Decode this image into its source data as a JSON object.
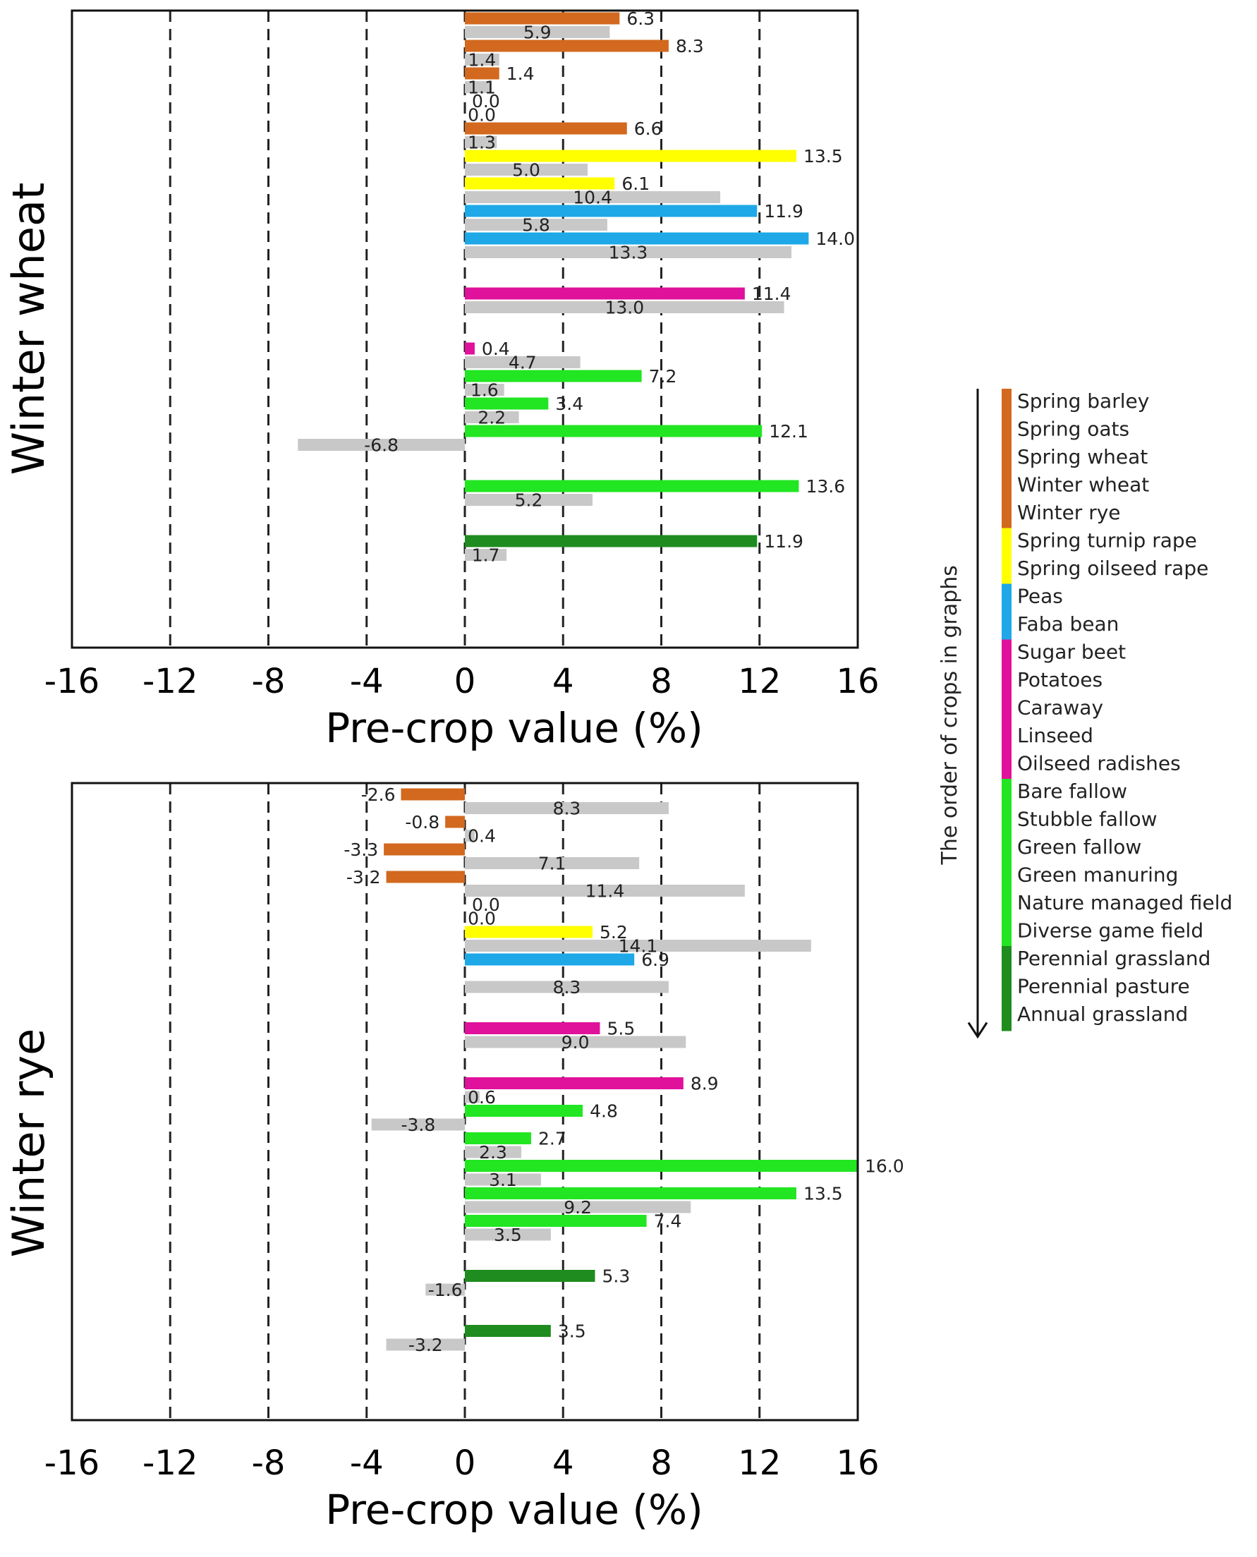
{
  "colors": {
    "cereals": "#D2691E",
    "oilseed": "#FFFF00",
    "legumes": "#1EA8E8",
    "root_special": "#E0119B",
    "fallow": "#22E622",
    "grassland": "#1E8C1E",
    "reference": "#C8C8C8"
  },
  "chart_data": [
    {
      "type": "bar",
      "orientation": "horizontal",
      "title": "Winter wheat",
      "xlabel": "Pre-crop value (%)",
      "xlim": [
        -16,
        16
      ],
      "xticks": [
        "-16",
        "-12",
        "-8",
        "-4",
        "0",
        "4",
        "8",
        "12",
        "16"
      ],
      "grid": "dashed vertical at -12, -8, -4, 0, 4, 8, 12",
      "bars": [
        {
          "value": 6.3,
          "label": "6.3",
          "color": "cereals",
          "row": 0
        },
        {
          "value": 5.9,
          "label": "5.9",
          "color": "reference",
          "row": 1
        },
        {
          "value": 8.3,
          "label": "8.3",
          "color": "cereals",
          "row": 2
        },
        {
          "value": 1.4,
          "label": "1.4",
          "color": "reference",
          "row": 3
        },
        {
          "value": 1.4,
          "label": "1.4",
          "color": "cereals",
          "row": 4
        },
        {
          "value": 1.1,
          "label": "1.1",
          "color": "reference",
          "row": 5
        },
        {
          "value": 0.0,
          "label": "0.0",
          "color": "cereals",
          "row": 6
        },
        {
          "value": 0.0,
          "label": "0.0",
          "color": "reference",
          "row": 7
        },
        {
          "value": 6.6,
          "label": "6.6",
          "color": "cereals",
          "row": 8
        },
        {
          "value": 1.3,
          "label": "1.3",
          "color": "reference",
          "row": 9
        },
        {
          "value": 13.5,
          "label": "13.5",
          "color": "oilseed",
          "row": 10
        },
        {
          "value": 5.0,
          "label": "5.0",
          "color": "reference",
          "row": 11
        },
        {
          "value": 6.1,
          "label": "6.1",
          "color": "oilseed",
          "row": 12
        },
        {
          "value": 10.4,
          "label": "10.4",
          "color": "reference",
          "row": 13
        },
        {
          "value": 11.9,
          "label": "11.9",
          "color": "legumes",
          "row": 14
        },
        {
          "value": 5.8,
          "label": "5.8",
          "color": "reference",
          "row": 15
        },
        {
          "value": 14.0,
          "label": "14.0",
          "color": "legumes",
          "row": 16
        },
        {
          "value": 13.3,
          "label": "13.3",
          "color": "reference",
          "row": 17
        },
        {
          "value": 11.4,
          "label": "11.4",
          "color": "root_special",
          "row": 20
        },
        {
          "value": 13.0,
          "label": "13.0",
          "color": "reference",
          "row": 21
        },
        {
          "value": 0.4,
          "label": "0.4",
          "color": "root_special",
          "row": 24
        },
        {
          "value": 4.7,
          "label": "4.7",
          "color": "reference",
          "row": 25
        },
        {
          "value": 7.2,
          "label": "7.2",
          "color": "fallow",
          "row": 26
        },
        {
          "value": 1.6,
          "label": "1.6",
          "color": "reference",
          "row": 27
        },
        {
          "value": 3.4,
          "label": "3.4",
          "color": "fallow",
          "row": 28
        },
        {
          "value": 2.2,
          "label": "2.2",
          "color": "reference",
          "row": 29
        },
        {
          "value": 12.1,
          "label": "12.1",
          "color": "fallow",
          "row": 30
        },
        {
          "value": -6.8,
          "label": "-6.8",
          "color": "reference",
          "row": 31
        },
        {
          "value": 13.6,
          "label": "13.6",
          "color": "fallow",
          "row": 34
        },
        {
          "value": 5.2,
          "label": "5.2",
          "color": "reference",
          "row": 35
        },
        {
          "value": 11.9,
          "label": "11.9",
          "color": "grassland",
          "row": 38
        },
        {
          "value": 1.7,
          "label": "1.7",
          "color": "reference",
          "row": 39
        }
      ]
    },
    {
      "type": "bar",
      "orientation": "horizontal",
      "title": "Winter rye",
      "xlabel": "Pre-crop value (%)",
      "xlim": [
        -16,
        16
      ],
      "xticks": [
        "-16",
        "-12",
        "-8",
        "-4",
        "0",
        "4",
        "8",
        "12",
        "16"
      ],
      "grid": "dashed vertical at -12, -8, -4, 0, 4, 8, 12",
      "bars": [
        {
          "value": -2.6,
          "label": "-2.6",
          "color": "cereals",
          "row": 0
        },
        {
          "value": 8.3,
          "label": "8.3",
          "color": "reference",
          "row": 1
        },
        {
          "value": -0.8,
          "label": "-0.8",
          "color": "cereals",
          "row": 2
        },
        {
          "value": 0.4,
          "label": "0.4",
          "color": "reference",
          "row": 3
        },
        {
          "value": -3.3,
          "label": "-3.3",
          "color": "cereals",
          "row": 4
        },
        {
          "value": 7.1,
          "label": "7.1",
          "color": "reference",
          "row": 5
        },
        {
          "value": -3.2,
          "label": "-3.2",
          "color": "cereals",
          "row": 6
        },
        {
          "value": 11.4,
          "label": "11.4",
          "color": "reference",
          "row": 7
        },
        {
          "value": 0.0,
          "label": "0.0",
          "color": "cereals",
          "row": 8
        },
        {
          "value": 0.0,
          "label": "0.0",
          "color": "reference",
          "row": 9
        },
        {
          "value": 5.2,
          "label": "5.2",
          "color": "oilseed",
          "row": 10
        },
        {
          "value": 14.1,
          "label": "14.1",
          "color": "reference",
          "row": 11
        },
        {
          "value": 6.9,
          "label": "6.9",
          "color": "legumes",
          "row": 12
        },
        {
          "value": 8.3,
          "label": "8.3",
          "color": "reference",
          "row": 14
        },
        {
          "value": 5.5,
          "label": "5.5",
          "color": "root_special",
          "row": 17
        },
        {
          "value": 9.0,
          "label": "9.0",
          "color": "reference",
          "row": 18
        },
        {
          "value": 8.9,
          "label": "8.9",
          "color": "root_special",
          "row": 21
        },
        {
          "value": 0.6,
          "label": "0.6",
          "color": "reference",
          "row": 22
        },
        {
          "value": 4.8,
          "label": "4.8",
          "color": "fallow",
          "row": 23
        },
        {
          "value": -3.8,
          "label": "-3.8",
          "color": "reference",
          "row": 24
        },
        {
          "value": 2.7,
          "label": "2.7",
          "color": "fallow",
          "row": 25
        },
        {
          "value": 2.3,
          "label": "2.3",
          "color": "reference",
          "row": 26
        },
        {
          "value": 16.0,
          "label": "16.0",
          "color": "fallow",
          "row": 27
        },
        {
          "value": 3.1,
          "label": "3.1",
          "color": "reference",
          "row": 28
        },
        {
          "value": 13.5,
          "label": "13.5",
          "color": "fallow",
          "row": 29
        },
        {
          "value": 9.2,
          "label": "9.2",
          "color": "reference",
          "row": 30
        },
        {
          "value": 7.4,
          "label": "7.4",
          "color": "fallow",
          "row": 31
        },
        {
          "value": 3.5,
          "label": "3.5",
          "color": "reference",
          "row": 32
        },
        {
          "value": 5.3,
          "label": "5.3",
          "color": "grassland",
          "row": 35
        },
        {
          "value": -1.6,
          "label": "-1.6",
          "color": "reference",
          "row": 36
        },
        {
          "value": 3.5,
          "label": "3.5",
          "color": "grassland",
          "row": 39
        },
        {
          "value": -3.2,
          "label": "-3.2",
          "color": "reference",
          "row": 40
        }
      ]
    }
  ],
  "legend": {
    "title": "The order of crops in graphs",
    "groups": [
      {
        "color": "cereals",
        "items": [
          "Spring barley",
          "Spring oats",
          "Spring wheat",
          "Winter wheat",
          "Winter rye"
        ]
      },
      {
        "color": "oilseed",
        "items": [
          "Spring turnip rape",
          "Spring oilseed rape"
        ]
      },
      {
        "color": "legumes",
        "items": [
          "Peas",
          "Faba bean"
        ]
      },
      {
        "color": "root_special",
        "items": [
          "Sugar beet",
          "Potatoes",
          "Caraway",
          "Linseed",
          "Oilseed radishes"
        ]
      },
      {
        "color": "fallow",
        "items": [
          "Bare fallow",
          "Stubble fallow",
          "Green fallow",
          "Green manuring",
          "Nature managed field",
          "Diverse game field"
        ]
      },
      {
        "color": "grassland",
        "items": [
          "Perennial grassland",
          "Perennial pasture",
          "Annual grassland"
        ]
      }
    ]
  }
}
